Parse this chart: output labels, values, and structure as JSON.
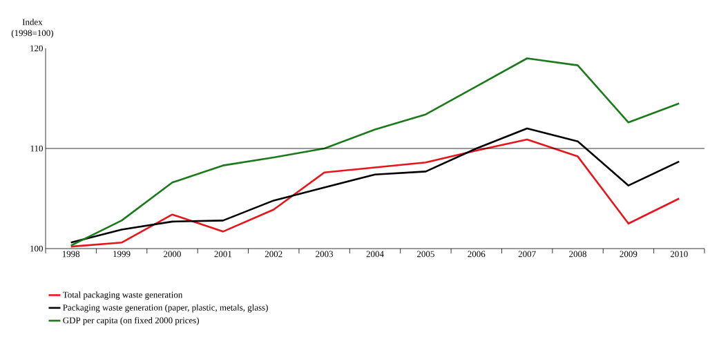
{
  "chart_data": {
    "type": "line",
    "ylabel": "Index (1998=100)",
    "categories": [
      "1998",
      "1999",
      "2000",
      "2001",
      "2002",
      "2003",
      "2004",
      "2005",
      "2006",
      "2007",
      "2008",
      "2009",
      "2010"
    ],
    "series": [
      {
        "name": "Total packaging waste generation",
        "color": "#e8141b",
        "values": [
          100.2,
          100.6,
          103.4,
          101.7,
          103.9,
          107.6,
          108.1,
          108.6,
          109.8,
          110.9,
          109.2,
          102.5,
          105.0
        ]
      },
      {
        "name": "Packaging waste generation (paper, plastic, metals, glass)",
        "color": "#000000",
        "values": [
          100.6,
          101.9,
          102.7,
          102.8,
          104.8,
          106.1,
          107.4,
          107.7,
          110.0,
          112.0,
          110.7,
          106.3,
          108.7
        ]
      },
      {
        "name": "GDP per capita (on fixed 2000 prices)",
        "color": "#1a7a1a",
        "values": [
          100.3,
          102.8,
          106.6,
          108.3,
          109.1,
          110.0,
          111.9,
          113.4,
          116.2,
          119.0,
          118.3,
          112.6,
          114.5
        ]
      }
    ],
    "ylim": [
      100,
      120
    ],
    "yticks": [
      100,
      110,
      120
    ],
    "ref_lines": [
      {
        "axis": "y",
        "value": 110,
        "color": "#000000"
      }
    ],
    "grid": false,
    "legend": "bottom",
    "marker": "none",
    "line_style": "solid"
  }
}
